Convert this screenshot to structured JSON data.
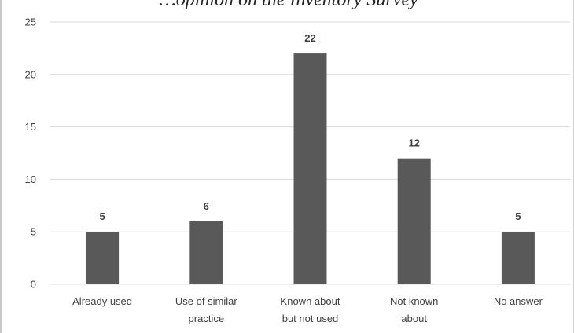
{
  "chart_data": {
    "type": "bar",
    "title": "…opinion on the Inventory Survey",
    "categories": [
      [
        "Already used"
      ],
      [
        "Use of similar",
        "practice"
      ],
      [
        "Known about",
        "but not used"
      ],
      [
        "Not known",
        "about"
      ],
      [
        "No answer"
      ]
    ],
    "values": [
      5,
      6,
      22,
      12,
      5
    ],
    "ylim": [
      0,
      25
    ],
    "yticks": [
      0,
      5,
      10,
      15,
      20,
      25
    ],
    "grid": true,
    "xlabel": "",
    "ylabel": "",
    "bar_color": "#595959",
    "grid_color": "#d9d9d9",
    "text_color": "#404040"
  }
}
